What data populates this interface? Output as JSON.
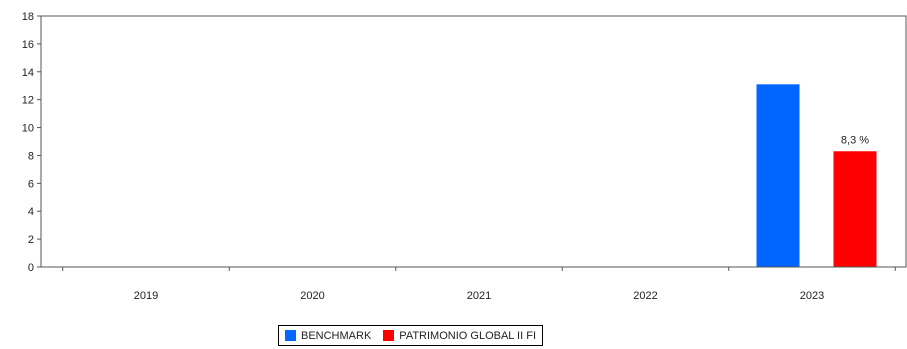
{
  "chart_data": {
    "type": "bar",
    "categories": [
      "2019",
      "2020",
      "2021",
      "2022",
      "2023"
    ],
    "series": [
      {
        "name": "BENCHMARK",
        "color": "#0066ff",
        "values": [
          null,
          null,
          null,
          null,
          13.1
        ],
        "labels": [
          null,
          null,
          null,
          null,
          null
        ]
      },
      {
        "name": "PATRIMONIO GLOBAL II FI",
        "color": "#ff0000",
        "values": [
          null,
          null,
          null,
          null,
          8.3
        ],
        "labels": [
          null,
          null,
          null,
          null,
          "8,3 %"
        ]
      }
    ],
    "ylim": [
      0,
      18
    ],
    "yticks": [
      0,
      2,
      4,
      6,
      8,
      10,
      12,
      14,
      16,
      18
    ],
    "grid": false,
    "legend_position": "bottom-center"
  }
}
